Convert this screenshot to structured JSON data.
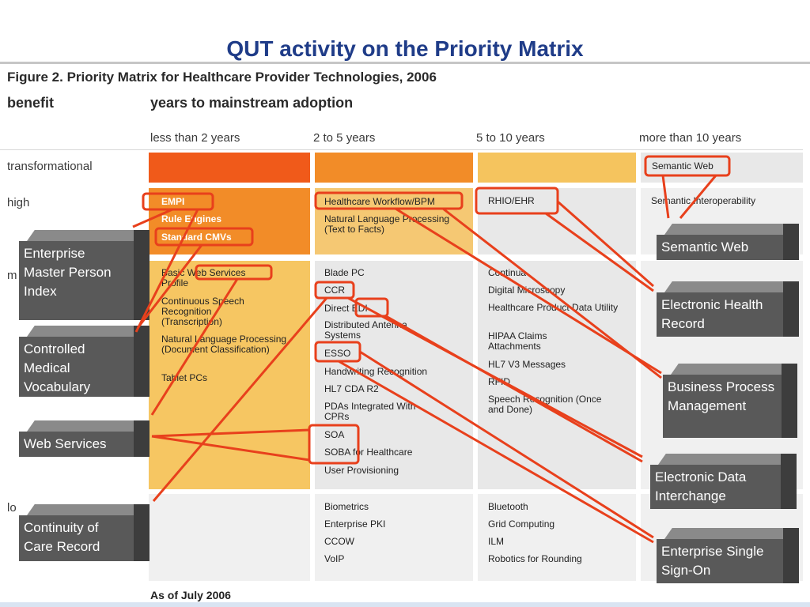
{
  "slide": {
    "title": "QUT activity on the  Priority Matrix"
  },
  "figure": {
    "title": "Figure 2. Priority Matrix for Healthcare Provider Technologies, 2006",
    "y_header": "benefit",
    "x_header": "years to mainstream adoption",
    "columns": [
      "less than 2 years",
      "2 to 5 years",
      "5 to 10 years",
      "more than 10 years"
    ],
    "rows": [
      "transformational",
      "high",
      "m",
      "lo"
    ],
    "high": {
      "c1": [
        "EMPI",
        "Rule Engines",
        "Standard CMVs"
      ],
      "c2": [
        "Healthcare Workflow/BPM",
        "Natural Language Processing (Text to Facts)"
      ],
      "c3": [
        "RHIO/EHR"
      ],
      "c4": [
        "Semantic Interoperability"
      ]
    },
    "transformational": {
      "c4": [
        "Semantic Web"
      ]
    },
    "moderate": {
      "c1": [
        "Basic Web Services Profile",
        "Continuous Speech Recognition (Transcription)",
        "Natural Language Processing (Document Classification)",
        "Tablet PCs"
      ],
      "c2": [
        "Blade PC",
        "CCR",
        "Direct EDI",
        "Distributed Antenna Systems",
        "ESSO",
        "Handwriting Recognition",
        "HL7 CDA R2",
        "PDAs Integrated With CPRs",
        "SOA",
        "SOBA for Healthcare",
        "User Provisioning"
      ],
      "c3": [
        "Continua",
        "Digital Microscopy",
        "Healthcare Product Data Utility",
        "HIPAA Claims Attachments",
        "HL7 V3 Messages",
        "RFID",
        "Speech Recognition (Once and Done)"
      ]
    },
    "low": {
      "c2": [
        "Biometrics",
        "Enterprise PKI",
        "CCOW",
        "VoIP"
      ],
      "c3": [
        "Bluetooth",
        "Grid Computing",
        "ILM",
        "Robotics for Rounding"
      ]
    },
    "footnote": "As of July 2006"
  },
  "callouts": {
    "empi": "Enterprise Master Person Index",
    "cmv": "Controlled Medical Vocabulary",
    "ws": "Web Services",
    "ccr": "Continuity of Care Record",
    "sw": "Semantic Web",
    "ehr": "Electronic Health Record",
    "bpm": "Business Process Management",
    "edi": "Electronic Data Interchange",
    "esso": "Enterprise Single Sign-On"
  },
  "colors": {
    "title": "#1f3c88",
    "highlight": "#e8401c",
    "callout": "#595959"
  }
}
